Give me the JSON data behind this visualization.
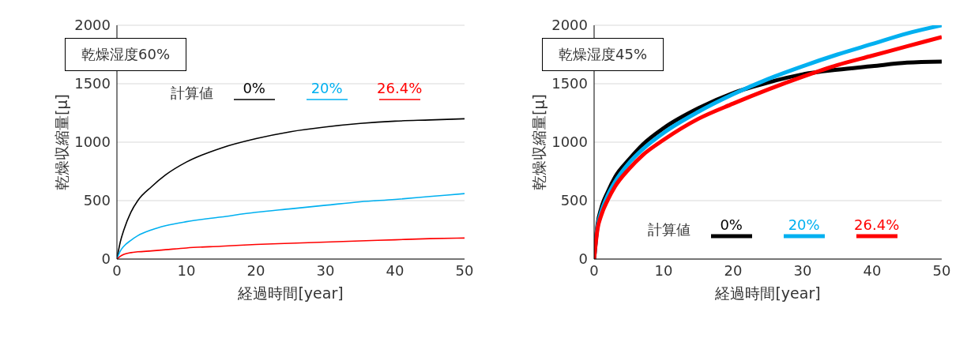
{
  "chart_data": [
    {
      "type": "line",
      "title": "乾燥湿度60%",
      "xlabel": "経過時間[year]",
      "ylabel": "乾燥収縮量[μ]",
      "legend_title": "計算値",
      "legend": "top right",
      "grid": "y",
      "marker": "none",
      "line_style": "solid",
      "xlim": [
        0,
        50
      ],
      "xticks": [
        0,
        10,
        20,
        30,
        40,
        50
      ],
      "ylim": [
        0,
        2000
      ],
      "yticks": [
        0,
        500,
        1000,
        1500,
        2000
      ],
      "x": [
        0,
        0.5,
        1,
        2,
        3,
        5,
        7,
        10,
        15,
        20,
        25,
        30,
        35,
        40,
        45,
        50
      ],
      "series": [
        {
          "name": "0%",
          "color": "#000000",
          "values": [
            0,
            150,
            250,
            400,
            500,
            620,
            720,
            830,
            950,
            1030,
            1090,
            1130,
            1160,
            1180,
            1190,
            1200
          ]
        },
        {
          "name": "20%",
          "color": "#00b0f0",
          "values": [
            0,
            70,
            110,
            160,
            200,
            250,
            285,
            320,
            360,
            400,
            430,
            460,
            490,
            510,
            535,
            560
          ]
        },
        {
          "name": "26.4%",
          "color": "#ff0000",
          "values": [
            0,
            25,
            40,
            55,
            62,
            70,
            80,
            95,
            110,
            125,
            135,
            145,
            155,
            165,
            175,
            180
          ]
        }
      ]
    },
    {
      "type": "line",
      "title": "乾燥湿度45%",
      "xlabel": "経過時間[year]",
      "ylabel": "乾燥収縮量[μ]",
      "legend_title": "計算値",
      "legend": "bottom right",
      "grid": "y",
      "marker": "none",
      "line_style": "solid",
      "xlim": [
        0,
        50
      ],
      "xticks": [
        0,
        10,
        20,
        30,
        40,
        50
      ],
      "ylim": [
        0,
        2000
      ],
      "yticks": [
        0,
        500,
        1000,
        1500,
        2000
      ],
      "x": [
        0,
        0.5,
        1,
        2,
        3,
        5,
        7,
        10,
        15,
        20,
        25,
        30,
        35,
        40,
        45,
        50
      ],
      "series": [
        {
          "name": "0%",
          "color": "#000000",
          "values": [
            0,
            300,
            430,
            580,
            700,
            850,
            980,
            1120,
            1290,
            1420,
            1510,
            1580,
            1620,
            1650,
            1680,
            1690
          ]
        },
        {
          "name": "20%",
          "color": "#00b0f0",
          "values": [
            0,
            280,
            400,
            550,
            660,
            820,
            940,
            1080,
            1260,
            1410,
            1540,
            1650,
            1750,
            1840,
            1930,
            2000
          ]
        },
        {
          "name": "26.4%",
          "color": "#ff0000",
          "values": [
            0,
            260,
            370,
            510,
            620,
            770,
            890,
            1020,
            1200,
            1330,
            1450,
            1560,
            1660,
            1740,
            1820,
            1900
          ]
        }
      ]
    }
  ]
}
